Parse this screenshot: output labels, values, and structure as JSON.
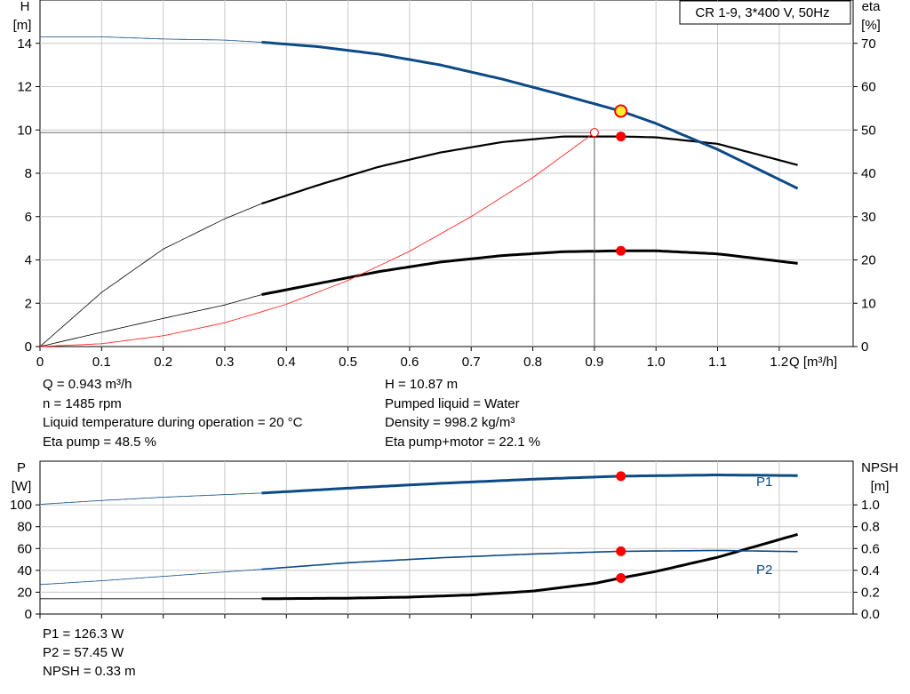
{
  "chart_data": [
    {
      "type": "line",
      "title": "CR 1-9, 3*400 V, 50Hz",
      "xlabel": "Q [m³/h]",
      "ylabel_left": [
        "H",
        "[m]"
      ],
      "ylabel_right": [
        "eta",
        "[%]"
      ],
      "xlim": [
        0,
        1.32
      ],
      "ylim_left": [
        0,
        16
      ],
      "ylim_right": [
        0,
        80
      ],
      "x_ticks": [
        "0",
        "0.1",
        "0.2",
        "0.3",
        "0.4",
        "0.5",
        "0.6",
        "0.7",
        "0.8",
        "0.9",
        "1.0",
        "1.1",
        "1.2"
      ],
      "y_left_ticks": [
        "0",
        "2",
        "4",
        "6",
        "8",
        "10",
        "12",
        "14"
      ],
      "y_right_ticks": [
        "0",
        "10",
        "20",
        "30",
        "40",
        "50",
        "60",
        "70"
      ],
      "grid": true,
      "series": [
        {
          "key": "H",
          "color": "#0b4a86",
          "axis": "left",
          "x": [
            0,
            0.1,
            0.2,
            0.3,
            0.36,
            0.45,
            0.55,
            0.65,
            0.75,
            0.85,
            0.943,
            1.0,
            1.1,
            1.23
          ],
          "values": [
            14.3,
            14.3,
            14.2,
            14.15,
            14.05,
            13.85,
            13.5,
            13.0,
            12.35,
            11.6,
            10.87,
            10.3,
            9.1,
            7.3
          ]
        },
        {
          "key": "eta_pump",
          "color": "#000000",
          "axis": "right",
          "x": [
            0,
            0.1,
            0.2,
            0.3,
            0.36,
            0.45,
            0.55,
            0.65,
            0.75,
            0.85,
            0.943,
            1.0,
            1.1,
            1.23
          ],
          "values": [
            0,
            12.5,
            22.5,
            29.5,
            33,
            37.2,
            41.5,
            44.8,
            47.2,
            48.5,
            48.5,
            48.3,
            46.8,
            41.9
          ]
        },
        {
          "key": "eta_pump_motor",
          "color": "#000000",
          "axis": "right",
          "x": [
            0,
            0.1,
            0.2,
            0.3,
            0.36,
            0.45,
            0.55,
            0.65,
            0.75,
            0.85,
            0.943,
            1.0,
            1.1,
            1.23
          ],
          "values": [
            0,
            3.3,
            6.5,
            9.6,
            12,
            14.5,
            17.3,
            19.5,
            21,
            21.9,
            22.1,
            22.1,
            21.4,
            19.2
          ]
        },
        {
          "key": "system",
          "color": "#ff2a2a",
          "axis": "left",
          "x": [
            0,
            0.1,
            0.2,
            0.3,
            0.4,
            0.5,
            0.6,
            0.7,
            0.8,
            0.9
          ],
          "values": [
            0,
            0.13,
            0.5,
            1.1,
            1.95,
            3.05,
            4.4,
            6.0,
            7.8,
            9.88
          ]
        }
      ],
      "duty_point": {
        "x": 0.943,
        "H": 10.87,
        "eta_pump": 48.5,
        "eta_pump_motor": 22.1
      },
      "reference_point": {
        "x": 0.9,
        "H": 9.88
      }
    },
    {
      "type": "line",
      "xlabel": "",
      "ylabel_left": [
        "P",
        "[W]"
      ],
      "ylabel_right": [
        "NPSH",
        "[m]"
      ],
      "xlim": [
        0,
        1.32
      ],
      "ylim_left": [
        0,
        140
      ],
      "ylim_right": [
        0,
        1.4
      ],
      "y_left_ticks": [
        "0",
        "20",
        "40",
        "60",
        "80",
        "100"
      ],
      "y_right_ticks": [
        "0.0",
        "0.2",
        "0.4",
        "0.6",
        "0.8",
        "1.0"
      ],
      "grid": true,
      "series": [
        {
          "name": "P1",
          "color": "#0b4a86",
          "axis": "left",
          "x": [
            0,
            0.1,
            0.2,
            0.36,
            0.5,
            0.65,
            0.8,
            0.943,
            1.1,
            1.23
          ],
          "values": [
            100.5,
            104,
            107,
            110.8,
            115.3,
            119.7,
            123.5,
            126.3,
            127.4,
            126.8
          ]
        },
        {
          "name": "P2",
          "color": "#0b4a86",
          "axis": "left",
          "x": [
            0,
            0.1,
            0.2,
            0.36,
            0.5,
            0.65,
            0.8,
            0.943,
            1.1,
            1.23
          ],
          "values": [
            27,
            30.5,
            34.5,
            41,
            47,
            51.5,
            55,
            57.45,
            58.2,
            57.2
          ]
        },
        {
          "key": "NPSH",
          "color": "#000000",
          "axis": "right",
          "x": [
            0,
            0.1,
            0.2,
            0.36,
            0.5,
            0.6,
            0.7,
            0.8,
            0.9,
            0.943,
            1.0,
            1.1,
            1.23
          ],
          "values": [
            0.14,
            0.14,
            0.14,
            0.14,
            0.145,
            0.155,
            0.175,
            0.21,
            0.28,
            0.33,
            0.39,
            0.52,
            0.73
          ]
        }
      ],
      "duty_point": {
        "x": 0.943,
        "P1": 126.3,
        "P2": 57.45,
        "NPSH": 0.33
      }
    }
  ],
  "readouts_top_left": [
    "Q = 0.943 m³/h",
    "n = 1485 rpm",
    "Liquid temperature during operation = 20 °C",
    "Eta pump = 48.5 %"
  ],
  "readouts_top_right": [
    "H = 10.87 m",
    "Pumped liquid = Water",
    "Density = 998.2 kg/m³",
    "Eta pump+motor = 22.1 %"
  ],
  "readouts_bottom": [
    "P1 = 126.3 W",
    "P2 = 57.45 W",
    "NPSH = 0.33 m"
  ],
  "colors": {
    "blue": "#0b4a86",
    "red": "#ff0000",
    "yellow": "#ffee33",
    "grid": "#c8c8c8"
  }
}
